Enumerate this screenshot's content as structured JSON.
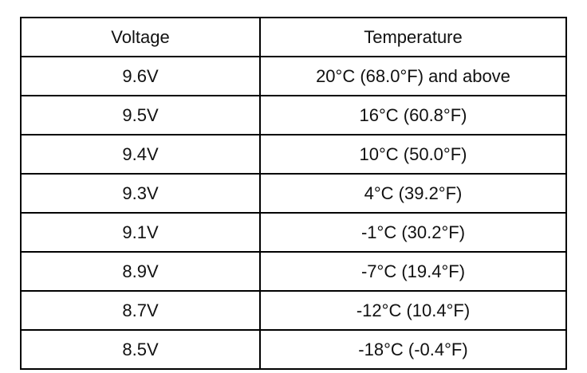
{
  "table": {
    "header": [
      "Voltage",
      "Temperature"
    ],
    "rows": [
      [
        "9.6V",
        "20°C (68.0°F) and above"
      ],
      [
        "9.5V",
        "16°C (60.8°F)"
      ],
      [
        "9.4V",
        "10°C (50.0°F)"
      ],
      [
        "9.3V",
        "4°C (39.2°F)"
      ],
      [
        "9.1V",
        "-1°C (30.2°F)"
      ],
      [
        "8.9V",
        "-7°C (19.4°F)"
      ],
      [
        "8.7V",
        "-12°C (10.4°F)"
      ],
      [
        "8.5V",
        "-18°C (-0.4°F)"
      ]
    ]
  }
}
